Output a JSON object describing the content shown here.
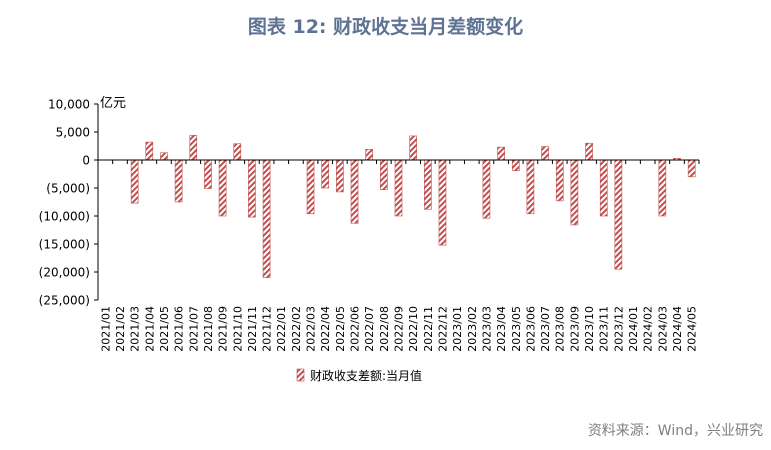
{
  "title": "图表 12: 财政收支当月差额变化",
  "source": "资料来源：Wind，兴业研究",
  "chart_data": {
    "type": "bar",
    "unit_label": "亿元",
    "legend": "财政收支差额:当月值",
    "ylim": [
      -25000,
      10000
    ],
    "yticks": [
      10000,
      5000,
      0,
      -5000,
      -10000,
      -15000,
      -20000,
      -25000
    ],
    "ytick_labels": [
      "10,000",
      "5,000",
      "0",
      "(5,000)",
      "(10,000)",
      "(15,000)",
      "(20,000)",
      "(25,000)"
    ],
    "bar_color": "#c0504d",
    "categories": [
      "2021/01",
      "2021/02",
      "2021/03",
      "2021/04",
      "2021/05",
      "2021/06",
      "2021/07",
      "2021/08",
      "2021/09",
      "2021/10",
      "2021/11",
      "2021/12",
      "2022/01",
      "2022/02",
      "2022/03",
      "2022/04",
      "2022/05",
      "2022/06",
      "2022/07",
      "2022/08",
      "2022/09",
      "2022/10",
      "2022/11",
      "2022/12",
      "2023/01",
      "2023/02",
      "2023/03",
      "2023/04",
      "2023/05",
      "2023/06",
      "2023/07",
      "2023/08",
      "2023/09",
      "2023/10",
      "2023/11",
      "2023/12",
      "2024/01",
      "2024/02",
      "2024/03",
      "2024/04",
      "2024/05"
    ],
    "values": [
      null,
      null,
      -7700,
      3200,
      1300,
      -7500,
      4400,
      -5100,
      -10000,
      2900,
      -10200,
      -21000,
      null,
      null,
      -9600,
      -5000,
      -5700,
      -11300,
      1900,
      -5300,
      -10000,
      4300,
      -8800,
      -15200,
      null,
      null,
      -10400,
      2300,
      -1900,
      -9600,
      2400,
      -7300,
      -11600,
      3000,
      -10000,
      -19500,
      null,
      null,
      -10000,
      300,
      -3000
    ]
  }
}
